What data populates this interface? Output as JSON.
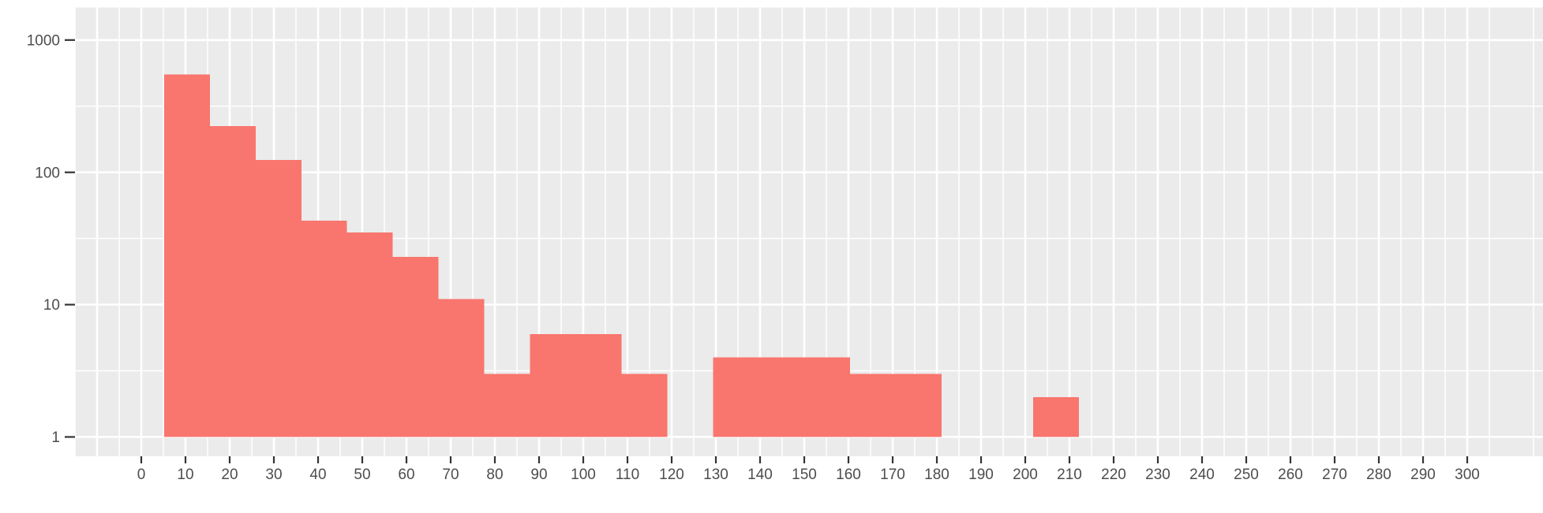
{
  "figure": {
    "title": "",
    "kind": "ggplot-style histogram panel"
  },
  "colors": {
    "bar_fill": "#F8766D",
    "panel_bg": "#EBEBEB",
    "grid_major": "#FFFFFF",
    "grid_minor": "#FFFFFF",
    "axis_text": "#4D4D4D",
    "tick_mark": "#333333",
    "outer_bg": "#FFFFFF"
  },
  "chart_data": {
    "type": "bar",
    "subtype": "histogram",
    "title": "",
    "xlabel": "",
    "ylabel": "",
    "legend": "none",
    "y_scale": "log10",
    "grid": {
      "major": true,
      "minor": true
    },
    "x_domain": [
      -15,
      317.14
    ],
    "y_domain_log10": [
      -0.146,
      3.246
    ],
    "x_ticks": [
      0,
      10,
      20,
      30,
      40,
      50,
      60,
      70,
      80,
      90,
      100,
      110,
      120,
      130,
      140,
      150,
      160,
      170,
      180,
      190,
      200,
      210,
      220,
      230,
      240,
      250,
      260,
      270,
      280,
      290,
      300
    ],
    "x_tick_labels": [
      "0",
      "10",
      "20",
      "30",
      "40",
      "50",
      "60",
      "70",
      "80",
      "90",
      "100",
      "110",
      "120",
      "130",
      "140",
      "150",
      "160",
      "170",
      "180",
      "190",
      "200",
      "210",
      "220",
      "230",
      "240",
      "250",
      "260",
      "270",
      "280",
      "290",
      "300"
    ],
    "x_minor_positions": [
      -15,
      -5,
      5,
      15,
      25,
      35,
      45,
      55,
      65,
      75,
      85,
      95,
      105,
      115,
      125,
      135,
      145,
      155,
      165,
      175,
      185,
      195,
      205,
      215,
      225,
      235,
      245,
      255,
      265,
      275,
      285,
      295,
      305,
      315
    ],
    "y_ticks": [
      1,
      10,
      100,
      1000
    ],
    "y_tick_labels": [
      "1",
      "10",
      "100",
      "1000"
    ],
    "y_minor_log10": [
      0.5,
      1.5,
      2.5
    ],
    "bins": {
      "start": 5.17,
      "width": 10.347,
      "baseline": 1,
      "counts": [
        550,
        223,
        124,
        43,
        35,
        23,
        11,
        3,
        6,
        6,
        3,
        0,
        4,
        4,
        4,
        3,
        3,
        0,
        0,
        2
      ]
    }
  }
}
